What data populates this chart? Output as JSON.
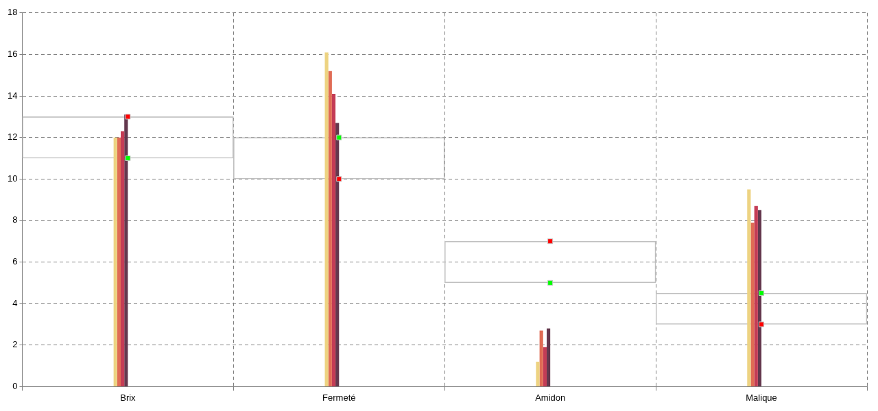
{
  "chart_data": {
    "type": "bar",
    "categories": [
      "Brix",
      "Fermeté",
      "Amidon",
      "Malique"
    ],
    "series": [
      {
        "color": "#edd382",
        "values": [
          12,
          16.1,
          1.2,
          9.5
        ]
      },
      {
        "color": "#e06c55",
        "values": [
          12,
          15.2,
          2.7,
          7.9
        ]
      },
      {
        "color": "#c43c55",
        "values": [
          12.3,
          14.1,
          1.9,
          8.7
        ]
      },
      {
        "color": "#64384e",
        "values": [
          13.1,
          12.7,
          2.8,
          8.5
        ]
      },
      {
        "type": "bar",
        "color": "#c0c0c0",
        "base": [
          11,
          10,
          5,
          3
        ],
        "values": [
          2,
          2,
          2,
          1.5
        ]
      },
      {
        "type": "scatter",
        "color": "#ff0000",
        "x": [
          "Brix",
          "Fermeté",
          "Amidon",
          "Malique"
        ],
        "values": [
          13,
          10,
          7,
          3
        ]
      },
      {
        "type": "scatter",
        "color": "#00ff00",
        "x": [
          "Brix",
          "Fermeté",
          "Amidon",
          "Malique"
        ],
        "values": [
          11,
          12,
          5,
          4.5
        ]
      }
    ],
    "ylim": [
      0,
      18
    ],
    "yticks": [
      0,
      2,
      4,
      6,
      8,
      10,
      12,
      14,
      16,
      18
    ],
    "grid": true,
    "legend": false,
    "marker": "square"
  }
}
